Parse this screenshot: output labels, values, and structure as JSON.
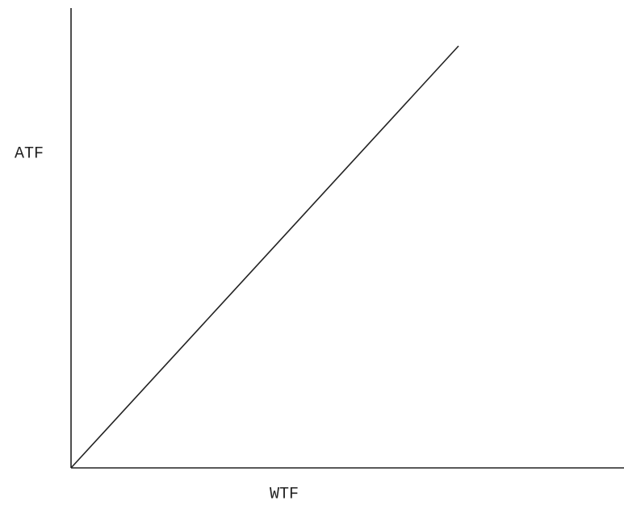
{
  "diagram": {
    "y_axis_label": "ATF",
    "x_axis_label": "WTF"
  }
}
